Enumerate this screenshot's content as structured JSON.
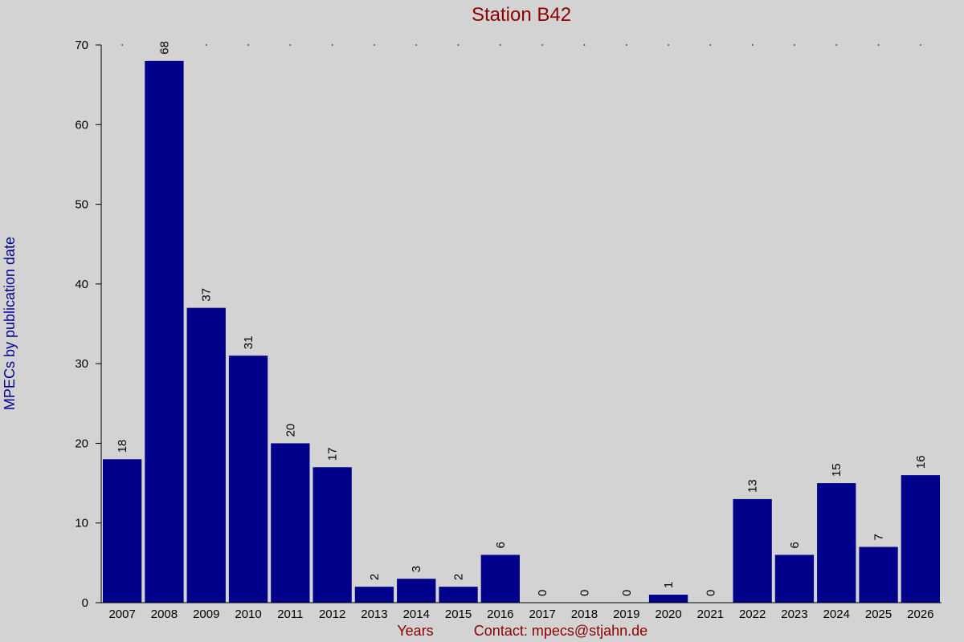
{
  "chart_data": {
    "type": "bar",
    "title": "Station B42",
    "ylabel": "MPECs by publication date",
    "xlabel": "Years",
    "contact": "Contact: mpecs@stjahn.de",
    "categories": [
      "2007",
      "2008",
      "2009",
      "2010",
      "2011",
      "2012",
      "2013",
      "2014",
      "2015",
      "2016",
      "2017",
      "2018",
      "2019",
      "2020",
      "2021",
      "2022",
      "2023",
      "2024",
      "2025",
      "2026"
    ],
    "values": [
      18,
      68,
      37,
      31,
      20,
      17,
      2,
      3,
      2,
      6,
      0,
      0,
      0,
      1,
      0,
      13,
      6,
      15,
      7,
      16
    ],
    "ylim": [
      0,
      70
    ],
    "yticks": [
      0,
      10,
      20,
      30,
      40,
      50,
      60,
      70
    ],
    "bar_color": "#00008b",
    "background": "#d3d3d3",
    "title_color": "#8b0000",
    "ylabel_color": "#00008b",
    "grid": "dotted-top"
  }
}
